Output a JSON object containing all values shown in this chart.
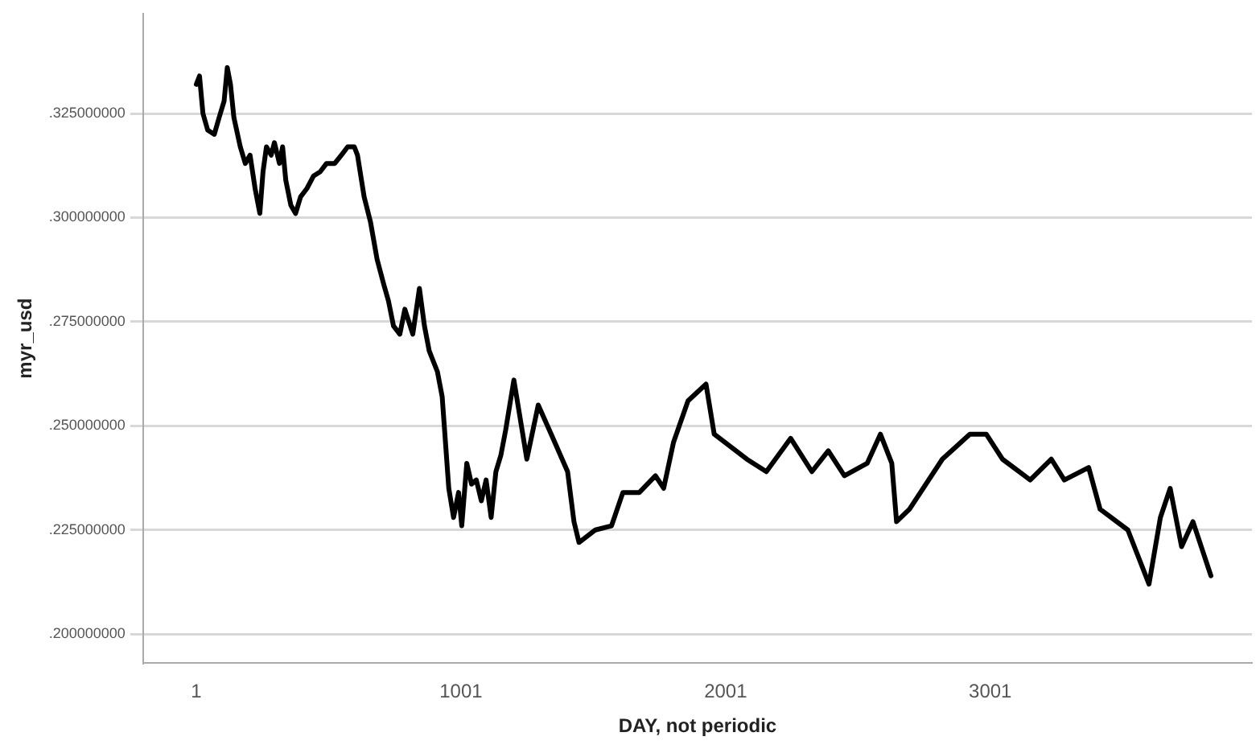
{
  "chart_data": {
    "type": "line",
    "xlabel": "DAY, not periodic",
    "ylabel": "myr_usd",
    "xlim": [
      -200,
      3990
    ],
    "xticks": [
      1,
      1001,
      2001,
      3001
    ],
    "ylim": [
      0.193,
      0.349
    ],
    "yticks": [
      {
        "value": 0.2,
        "label": ".200000000"
      },
      {
        "value": 0.225,
        "label": ".225000000"
      },
      {
        "value": 0.25,
        "label": ".250000000"
      },
      {
        "value": 0.275,
        "label": ".275000000"
      },
      {
        "value": 0.3,
        "label": ".300000000"
      },
      {
        "value": 0.325,
        "label": ".325000000"
      }
    ],
    "grid": "y",
    "legend": false,
    "marker": "none",
    "line_style": "solid",
    "series": [
      {
        "color": "#000000",
        "x": [
          1,
          13,
          26,
          44,
          69,
          87,
          106,
          118,
          130,
          143,
          167,
          186,
          204,
          223,
          241,
          253,
          266,
          284,
          296,
          315,
          327,
          339,
          358,
          376,
          395,
          419,
          444,
          469,
          493,
          524,
          549,
          573,
          598,
          610,
          635,
          659,
          684,
          709,
          727,
          746,
          770,
          789,
          819,
          844,
          863,
          881,
          912,
          930,
          955,
          973,
          992,
          1004,
          1023,
          1041,
          1059,
          1078,
          1096,
          1115,
          1133,
          1152,
          1170,
          1201,
          1250,
          1293,
          1342,
          1404,
          1428,
          1447,
          1509,
          1570,
          1613,
          1675,
          1736,
          1767,
          1804,
          1859,
          1927,
          1958,
          2081,
          2155,
          2247,
          2327,
          2389,
          2450,
          2536,
          2586,
          2629,
          2647,
          2696,
          2820,
          2924,
          2986,
          3047,
          3152,
          3232,
          3281,
          3373,
          3416,
          3521,
          3601,
          3644,
          3681,
          3724,
          3767,
          3835
        ],
        "values": [
          0.332,
          0.334,
          0.325,
          0.321,
          0.32,
          0.324,
          0.328,
          0.336,
          0.332,
          0.324,
          0.317,
          0.313,
          0.315,
          0.307,
          0.301,
          0.311,
          0.317,
          0.315,
          0.318,
          0.313,
          0.317,
          0.309,
          0.303,
          0.301,
          0.305,
          0.307,
          0.31,
          0.311,
          0.313,
          0.313,
          0.315,
          0.317,
          0.317,
          0.315,
          0.305,
          0.299,
          0.29,
          0.284,
          0.28,
          0.274,
          0.272,
          0.278,
          0.272,
          0.283,
          0.274,
          0.268,
          0.263,
          0.257,
          0.235,
          0.228,
          0.234,
          0.226,
          0.241,
          0.236,
          0.237,
          0.232,
          0.237,
          0.228,
          0.239,
          0.243,
          0.249,
          0.261,
          0.242,
          0.255,
          0.248,
          0.239,
          0.227,
          0.222,
          0.225,
          0.226,
          0.234,
          0.234,
          0.238,
          0.235,
          0.246,
          0.256,
          0.26,
          0.248,
          0.242,
          0.239,
          0.247,
          0.239,
          0.244,
          0.238,
          0.241,
          0.248,
          0.241,
          0.227,
          0.23,
          0.242,
          0.248,
          0.248,
          0.242,
          0.237,
          0.242,
          0.237,
          0.24,
          0.23,
          0.225,
          0.212,
          0.228,
          0.235,
          0.221,
          0.227,
          0.214
        ]
      }
    ]
  }
}
